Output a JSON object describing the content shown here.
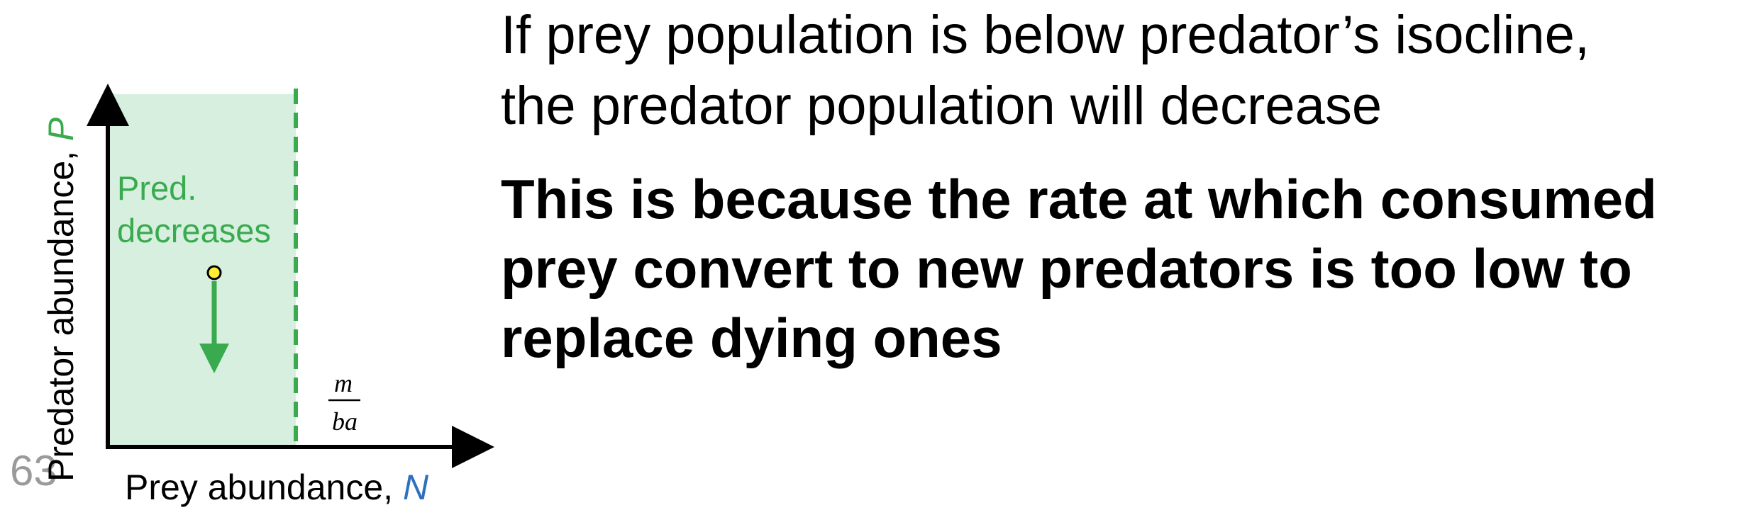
{
  "slide_number": "63",
  "text": {
    "line1": [
      "If prey population is below predator’s isocline,",
      "the predator population will decrease"
    ],
    "line2_bold": [
      "This is because the rate at which consumed",
      "prey convert to new predators is too low to",
      "replace dying ones"
    ]
  },
  "diagram": {
    "y_axis_label": "Predator abundance, ",
    "y_axis_variable": "P",
    "x_axis_label": "Prey abundance, ",
    "x_axis_variable": "N",
    "region_label_line1": "Pred.",
    "region_label_line2": "decreases",
    "isocline_numerator": "m",
    "isocline_denominator": "ba",
    "colors": {
      "region_fill": "#d6efdf",
      "isocline": "#3aaa4f",
      "region_text": "#3aaa4f",
      "arrow": "#3aaa4f",
      "point_fill": "#ffee33",
      "x_variable": "#2f6fc0",
      "y_variable": "#3aaa4f",
      "axes": "#000000"
    }
  }
}
